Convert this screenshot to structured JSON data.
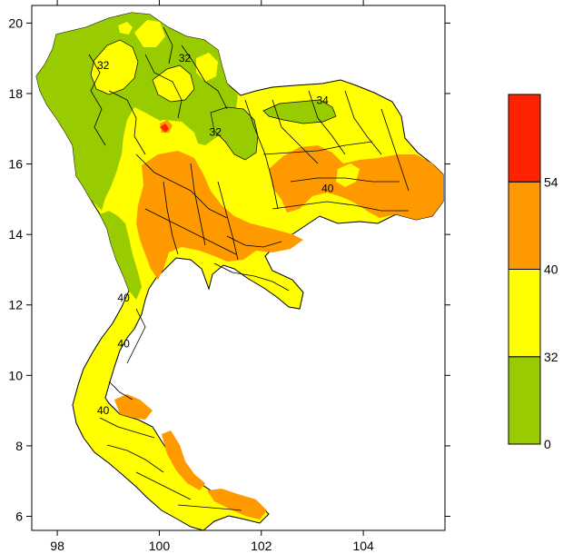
{
  "map": {
    "x_axis": {
      "min": 97.5,
      "max": 105.6,
      "ticks": [
        {
          "value": 98,
          "label": "98"
        },
        {
          "value": 100,
          "label": "100"
        },
        {
          "value": 102,
          "label": "102"
        },
        {
          "value": 104,
          "label": "104"
        }
      ]
    },
    "y_axis": {
      "min": 5.6,
      "max": 20.5,
      "ticks": [
        {
          "value": 6,
          "label": "6"
        },
        {
          "value": 8,
          "label": "8"
        },
        {
          "value": 10,
          "label": "10"
        },
        {
          "value": 12,
          "label": "12"
        },
        {
          "value": 14,
          "label": "14"
        },
        {
          "value": 16,
          "label": "16"
        },
        {
          "value": 18,
          "label": "18"
        },
        {
          "value": 20,
          "label": "20"
        }
      ]
    },
    "contour_labels": [
      {
        "text": "32",
        "lon": 98.9,
        "lat": 18.7
      },
      {
        "text": "32",
        "lon": 100.5,
        "lat": 18.9
      },
      {
        "text": "32",
        "lon": 101.1,
        "lat": 16.8
      },
      {
        "text": "34",
        "lon": 103.2,
        "lat": 17.7
      },
      {
        "text": "40",
        "lon": 103.3,
        "lat": 15.2
      },
      {
        "text": "40",
        "lon": 99.3,
        "lat": 12.1
      },
      {
        "text": "40",
        "lon": 99.3,
        "lat": 10.8
      },
      {
        "text": "40",
        "lon": 98.9,
        "lat": 8.9
      }
    ]
  },
  "legend": {
    "bins": [
      {
        "from": "0",
        "to": "32",
        "color": "#99cc00"
      },
      {
        "from": "32",
        "to": "40",
        "color": "#ffff00"
      },
      {
        "from": "40",
        "to": "54",
        "color": "#ff9900"
      },
      {
        "from": "54",
        "to": "",
        "color": "#ff2200"
      }
    ],
    "labels": [
      "0",
      "32",
      "40",
      "54"
    ]
  },
  "colors": {
    "green": "#99cc00",
    "yellow": "#ffff00",
    "orange": "#ff9900",
    "red": "#ff2200"
  }
}
